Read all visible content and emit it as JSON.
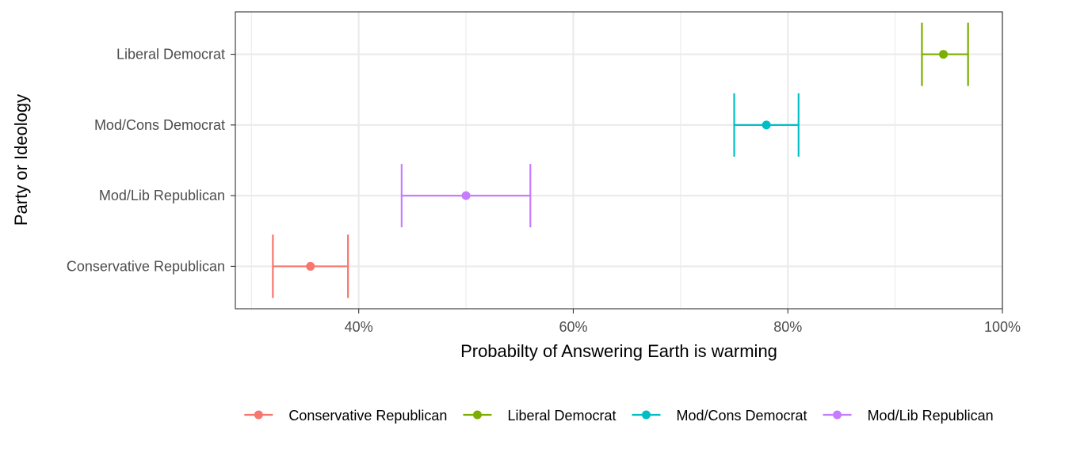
{
  "chart_data": {
    "type": "errorbar",
    "xlabel": "Probabilty of Answering Earth is warming",
    "ylabel": "Party or Ideology",
    "x_axis_format": "percent",
    "xlim": [
      0.285,
      1.0
    ],
    "x_ticks": [
      0.4,
      0.6,
      0.8,
      1.0
    ],
    "x_tick_labels": [
      "40%",
      "60%",
      "80%",
      "100%"
    ],
    "categories": [
      "Conservative Republican",
      "Mod/Lib Republican",
      "Mod/Cons Democrat",
      "Liberal Democrat"
    ],
    "series": [
      {
        "name": "Conservative Republican",
        "category": "Conservative Republican",
        "estimate": 0.355,
        "lower": 0.32,
        "upper": 0.39,
        "color": "#F8766D"
      },
      {
        "name": "Mod/Lib Republican",
        "category": "Mod/Lib Republican",
        "estimate": 0.5,
        "lower": 0.44,
        "upper": 0.56,
        "color": "#C77CFF"
      },
      {
        "name": "Mod/Cons Democrat",
        "category": "Mod/Cons Democrat",
        "estimate": 0.78,
        "lower": 0.75,
        "upper": 0.81,
        "color": "#00BFC4"
      },
      {
        "name": "Liberal Democrat",
        "category": "Liberal Democrat",
        "estimate": 0.945,
        "lower": 0.925,
        "upper": 0.968,
        "color": "#7CAE00"
      }
    ],
    "legend": {
      "position": "bottom",
      "items": [
        {
          "label": "Conservative Republican",
          "color": "#F8766D"
        },
        {
          "label": "Liberal Democrat",
          "color": "#7CAE00"
        },
        {
          "label": "Mod/Cons Democrat",
          "color": "#00BFC4"
        },
        {
          "label": "Mod/Lib Republican",
          "color": "#C77CFF"
        }
      ]
    },
    "grid": true,
    "theme": "bw"
  }
}
